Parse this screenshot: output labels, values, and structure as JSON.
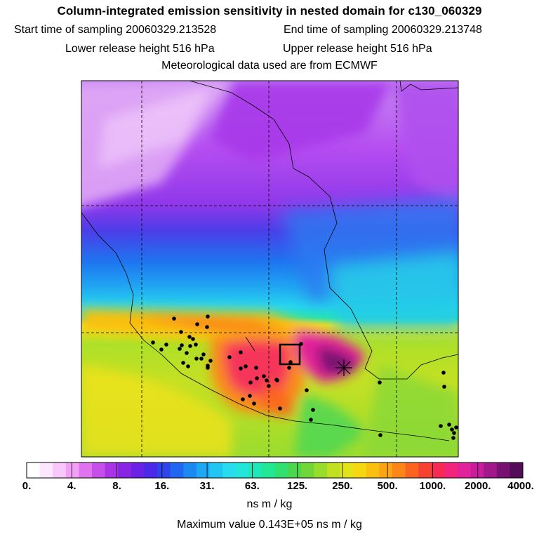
{
  "header": {
    "title": "Column-integrated emission sensitivity in nested domain for c130_060329",
    "start_label": "Start time of sampling 20060329.213528",
    "end_label": "End time of sampling 20060329.213748",
    "lower_label": "Lower release height  516 hPa",
    "upper_label": "Upper release height  516 hPa",
    "met_label": "Meteorological data used are from ECMWF"
  },
  "chart_data": {
    "type": "heatmap",
    "colorbar": {
      "ticks": [
        "0.",
        "4.",
        "8.",
        "16.",
        "31.",
        "63.",
        "125.",
        "250.",
        "500.",
        "1000.",
        "2000.",
        "4000."
      ],
      "colors": [
        "#ffffff",
        "#fde6ff",
        "#f9c8fb",
        "#f1a0f5",
        "#e074f0",
        "#c64ee9",
        "#a934e6",
        "#8a24e4",
        "#6a22e6",
        "#4a2ae8",
        "#2f44ec",
        "#2066f0",
        "#1c88f2",
        "#1ea8f4",
        "#22c6f2",
        "#26dcee",
        "#22e6da",
        "#1ee8b8",
        "#22e896",
        "#30e070",
        "#4ad64e",
        "#70d63a",
        "#98dc2c",
        "#c0e020",
        "#e2e418",
        "#f6d812",
        "#fac010",
        "#fca414",
        "#fc8618",
        "#fa6420",
        "#f64230",
        "#f62a52",
        "#f2247c",
        "#e2229a",
        "#c81e9c",
        "#a0188a",
        "#781272",
        "#520c58"
      ],
      "unit": "ns m / kg"
    },
    "max_value_label": "Maximum value  0.143E+05 ns m / kg"
  }
}
